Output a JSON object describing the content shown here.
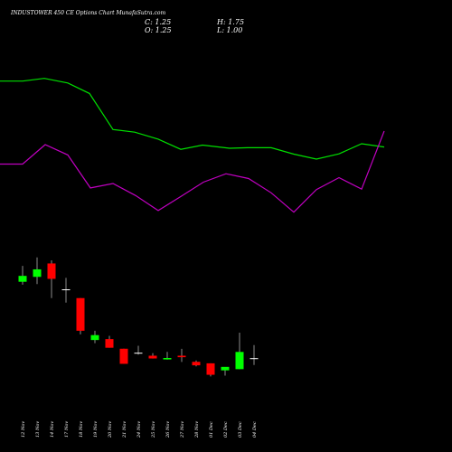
{
  "header": {
    "title": "INDUSTOWER 450 CE Options Chart MunafaSutra.com",
    "open_label": "O: 1.25",
    "high_label": "H: 1.75",
    "close_label": "C: 1.25",
    "low_label": "L: 1.00"
  },
  "chart_data": {
    "type": "candlestick",
    "categories": [
      "12 Nov",
      "13 Nov",
      "14 Nov",
      "17 Nov",
      "18 Nov",
      "19 Nov",
      "20 Nov",
      "21 Nov",
      "24 Nov",
      "25 Nov",
      "26 Nov",
      "27 Nov",
      "28 Nov",
      "01 Dec",
      "02 Dec",
      "03 Dec",
      "04 Dec"
    ],
    "candles": [
      {
        "open": 10.79,
        "high": 13.56,
        "low": 10.29,
        "close": 11.82
      },
      {
        "open": 11.65,
        "high": 15.04,
        "low": 10.38,
        "close": 12.96
      },
      {
        "open": 13.99,
        "high": 14.53,
        "low": 7.94,
        "close": 11.3
      },
      {
        "open": 9.47,
        "high": 11.48,
        "low": 7.15,
        "close": 9.26
      },
      {
        "open": 7.94,
        "high": 7.94,
        "low": 1.6,
        "close": 2.23
      },
      {
        "open": 0.61,
        "high": 2.24,
        "low": 0.06,
        "close": 1.47
      },
      {
        "open": 0.77,
        "high": 1.35,
        "low": -0.73,
        "close": -0.74
      },
      {
        "open": -0.91,
        "high": -0.91,
        "low": -3.55,
        "close": -3.55
      },
      {
        "open": -1.61,
        "high": -0.39,
        "low": -1.95,
        "close": -1.61
      },
      {
        "open": -2.13,
        "high": -1.67,
        "low": -2.63,
        "close": -2.61
      },
      {
        "open": -2.78,
        "high": -1.47,
        "low": -2.8,
        "close": -2.53
      },
      {
        "open": -2.13,
        "high": -0.92,
        "low": -3.21,
        "close": -2.39
      },
      {
        "open": -3.2,
        "high": -2.97,
        "low": -3.98,
        "close": -3.81
      },
      {
        "open": -3.46,
        "high": -3.46,
        "low": -5.74,
        "close": -5.46
      },
      {
        "open": -4.69,
        "high": -4.21,
        "low": -5.61,
        "close": -4.08
      },
      {
        "open": -4.48,
        "high": 1.89,
        "low": -4.48,
        "close": -1.47
      },
      {
        "open": -2.56,
        "high": -0.28,
        "low": -3.75,
        "close": -2.56
      }
    ],
    "upper_line": [
      {
        "x": 0,
        "y": 89.7
      },
      {
        "x": 25,
        "y": 89.7
      },
      {
        "x": 49,
        "y": 86.7
      },
      {
        "x": 75,
        "y": 91.8
      },
      {
        "x": 99,
        "y": 103.4
      },
      {
        "x": 125,
        "y": 143.3
      },
      {
        "x": 149,
        "y": 146.2
      },
      {
        "x": 175,
        "y": 153.9
      },
      {
        "x": 200,
        "y": 165.2
      },
      {
        "x": 224,
        "y": 160.5
      },
      {
        "x": 254,
        "y": 164.0
      },
      {
        "x": 274,
        "y": 163.4
      },
      {
        "x": 300,
        "y": 163.4
      },
      {
        "x": 325,
        "y": 170.5
      },
      {
        "x": 350,
        "y": 176.0
      },
      {
        "x": 375,
        "y": 170.2
      },
      {
        "x": 400,
        "y": 159.0
      },
      {
        "x": 425,
        "y": 162.6
      }
    ],
    "lower_line": [
      {
        "x": 0,
        "y": 181.5
      },
      {
        "x": 25,
        "y": 181.5
      },
      {
        "x": 50,
        "y": 160.0
      },
      {
        "x": 75,
        "y": 171.4
      },
      {
        "x": 100,
        "y": 207.9
      },
      {
        "x": 125,
        "y": 203.0
      },
      {
        "x": 150,
        "y": 216.3
      },
      {
        "x": 175,
        "y": 232.9
      },
      {
        "x": 200,
        "y": 217.4
      },
      {
        "x": 225,
        "y": 201.5
      },
      {
        "x": 250,
        "y": 192.2
      },
      {
        "x": 275,
        "y": 197.5
      },
      {
        "x": 300,
        "y": 213.3
      },
      {
        "x": 325,
        "y": 234.7
      },
      {
        "x": 350,
        "y": 209.7
      },
      {
        "x": 375,
        "y": 196.5
      },
      {
        "x": 400,
        "y": 209.2
      },
      {
        "x": 425,
        "y": 145.0
      }
    ],
    "colors": {
      "up": "#00ff00",
      "down": "#ff0000",
      "upper_line": "#00e000",
      "lower_line": "#c000c0",
      "wick": "#8c8c8c",
      "doji": "#ffffff",
      "background": "#000000"
    }
  }
}
